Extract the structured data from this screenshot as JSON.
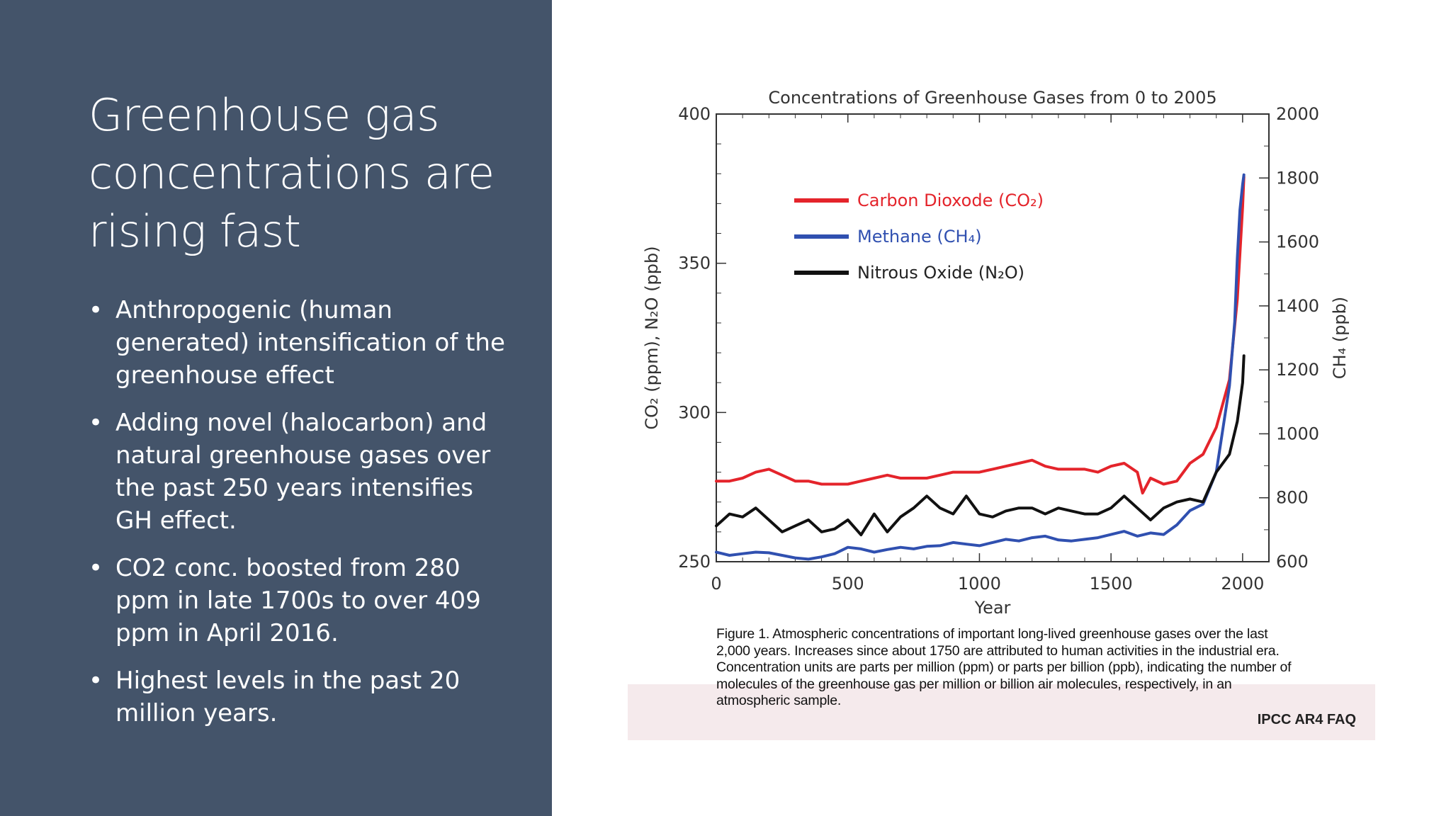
{
  "slide": {
    "title": "Greenhouse gas concentrations are rising fast",
    "bullets": [
      "Anthropogenic (human generated) intensification of the greenhouse effect",
      "Adding novel (halocarbon) and natural greenhouse gases over the past 250 years intensifies GH effect.",
      "CO2 conc. boosted from 280 ppm in late 1700s to over 409 ppm in April 2016.",
      "Highest levels in the past 20 million years."
    ],
    "bullet_symbol": "•"
  },
  "figure": {
    "caption": "Figure 1. Atmospheric concentrations of important long-lived greenhouse gases over the last 2,000 years. Increases since about 1750 are attributed to human activities in the industrial era. Concentration units are parts per million (ppm) or parts per billion (ppb), indicating the number of molecules of the greenhouse gas per million or billion air molecules, respectively, in an atmospheric sample.",
    "source": "IPCC AR4 FAQ"
  },
  "colors": {
    "panel": "#44546a",
    "co2": "#e4242b",
    "ch4": "#3050b0",
    "n2o": "#111111",
    "caption_band": "#f5eaec"
  },
  "chart_data": {
    "type": "line",
    "title": "Concentrations of Greenhouse Gases from 0 to 2005",
    "xlabel": "Year",
    "ylabel_left": "CO₂ (ppm), N₂O (ppb)",
    "ylabel_right": "CH₄ (ppb)",
    "xlim": [
      0,
      2100
    ],
    "ylim_left": [
      250,
      400
    ],
    "ylim_right": [
      600,
      2000
    ],
    "x_ticks": [
      0,
      500,
      1000,
      1500,
      2000
    ],
    "y_ticks_left": [
      250,
      300,
      350,
      400
    ],
    "y_ticks_right": [
      600,
      800,
      1000,
      1200,
      1400,
      1600,
      1800,
      2000
    ],
    "grid": false,
    "legend": "upper-left",
    "series": [
      {
        "name": "Carbon Dioxode (CO₂)",
        "axis": "left",
        "x": [
          0,
          50,
          100,
          150,
          200,
          250,
          300,
          350,
          400,
          450,
          500,
          550,
          600,
          650,
          700,
          750,
          800,
          850,
          900,
          950,
          1000,
          1050,
          1100,
          1150,
          1200,
          1250,
          1300,
          1350,
          1400,
          1450,
          1500,
          1550,
          1600,
          1620,
          1650,
          1700,
          1750,
          1800,
          1850,
          1900,
          1950,
          1980,
          2000,
          2005
        ],
        "values": [
          277,
          277,
          278,
          280,
          281,
          279,
          277,
          277,
          276,
          276,
          276,
          277,
          278,
          279,
          278,
          278,
          278,
          279,
          280,
          280,
          280,
          281,
          282,
          283,
          284,
          282,
          281,
          281,
          281,
          280,
          282,
          283,
          280,
          273,
          278,
          276,
          277,
          283,
          286,
          295,
          311,
          338,
          369,
          379
        ]
      },
      {
        "name": "Methane (CH₄)",
        "axis": "right",
        "x": [
          0,
          50,
          100,
          150,
          200,
          250,
          300,
          350,
          400,
          450,
          500,
          550,
          600,
          650,
          700,
          750,
          800,
          850,
          900,
          950,
          1000,
          1050,
          1100,
          1150,
          1200,
          1250,
          1300,
          1350,
          1400,
          1450,
          1500,
          1550,
          1600,
          1650,
          1700,
          1750,
          1800,
          1850,
          1900,
          1950,
          1970,
          1980,
          1990,
          2000,
          2005
        ],
        "values": [
          630,
          620,
          625,
          630,
          628,
          620,
          612,
          608,
          615,
          625,
          645,
          640,
          630,
          638,
          645,
          640,
          648,
          650,
          660,
          655,
          650,
          660,
          670,
          665,
          675,
          680,
          668,
          665,
          670,
          675,
          685,
          695,
          680,
          690,
          685,
          715,
          760,
          780,
          880,
          1150,
          1350,
          1550,
          1700,
          1780,
          1810
        ]
      },
      {
        "name": "Nitrous Oxide (N₂O)",
        "axis": "left",
        "x": [
          0,
          50,
          100,
          150,
          200,
          250,
          300,
          350,
          400,
          450,
          500,
          550,
          600,
          650,
          700,
          750,
          800,
          850,
          900,
          950,
          1000,
          1050,
          1100,
          1150,
          1200,
          1250,
          1300,
          1350,
          1400,
          1450,
          1500,
          1550,
          1600,
          1650,
          1700,
          1750,
          1800,
          1850,
          1900,
          1950,
          1980,
          2000,
          2005
        ],
        "values": [
          262,
          266,
          265,
          268,
          264,
          260,
          262,
          264,
          260,
          261,
          264,
          259,
          266,
          260,
          265,
          268,
          272,
          268,
          266,
          272,
          266,
          265,
          267,
          268,
          268,
          266,
          268,
          267,
          266,
          266,
          268,
          272,
          268,
          264,
          268,
          270,
          271,
          270,
          280,
          286,
          297,
          310,
          319
        ]
      }
    ]
  }
}
